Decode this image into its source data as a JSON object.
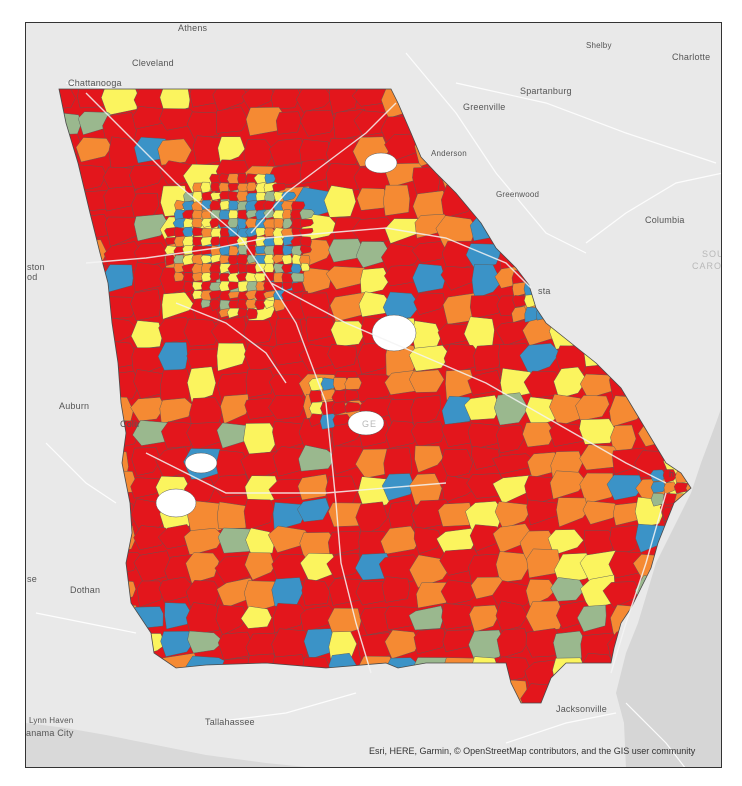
{
  "map": {
    "colors": {
      "background": "#e9e9e9",
      "water": "#d6d6d6",
      "red": "#e3161c",
      "orange": "#f58a33",
      "yellow": "#fbf45e",
      "blue": "#3b93c7",
      "sage": "#9ab88e",
      "boundary": "#5a5a5a",
      "road": "#f7f7f7"
    },
    "place_labels": [
      {
        "id": "athens",
        "text": "Athens"
      },
      {
        "id": "cleveland",
        "text": "Cleveland"
      },
      {
        "id": "chattanooga",
        "text": "Chattanooga"
      },
      {
        "id": "shelby",
        "text": "Shelby"
      },
      {
        "id": "charlotte",
        "text": "Charlotte"
      },
      {
        "id": "spartanburg",
        "text": "Spartanburg"
      },
      {
        "id": "greenville",
        "text": "Greenville"
      },
      {
        "id": "anderson",
        "text": "Anderson"
      },
      {
        "id": "greenwood",
        "text": "Greenwood"
      },
      {
        "id": "columbia",
        "text": "Columbia"
      },
      {
        "id": "sc1",
        "text": "SOU"
      },
      {
        "id": "sc2",
        "text": "CARO"
      },
      {
        "id": "aniston1",
        "text": "ston"
      },
      {
        "id": "aniston2",
        "text": "od"
      },
      {
        "id": "augusta",
        "text": "sta"
      },
      {
        "id": "auburn",
        "text": "Auburn"
      },
      {
        "id": "columbus",
        "text": "Colu"
      },
      {
        "id": "geo",
        "text": "GE"
      },
      {
        "id": "dothan",
        "text": "Dothan"
      },
      {
        "id": "enterprise",
        "text": "se"
      },
      {
        "id": "tallahassee",
        "text": "Tallahassee"
      },
      {
        "id": "lynnhaven",
        "text": "Lynn Haven"
      },
      {
        "id": "panamacity",
        "text": "anama City"
      },
      {
        "id": "jacksonville",
        "text": "Jacksonville"
      },
      {
        "id": "savannah",
        "text": "h"
      }
    ],
    "attribution": "Esri, HERE, Garmin, © OpenStreetMap contributors, and the GIS user community"
  }
}
